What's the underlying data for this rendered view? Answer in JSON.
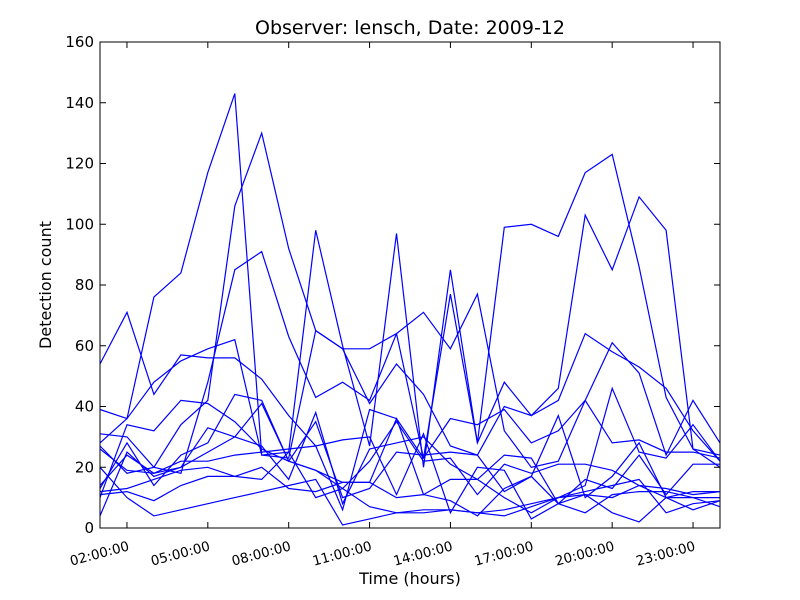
{
  "chart_data": {
    "type": "line",
    "title": "Observer: lensch, Date: 2009-12",
    "xlabel": "Time (hours)",
    "ylabel": "Detection count",
    "ylim": [
      0,
      160
    ],
    "xlim": [
      0,
      23
    ],
    "yticks": [
      0,
      20,
      40,
      60,
      80,
      100,
      120,
      140,
      160
    ],
    "xticks": [
      {
        "x": 1,
        "label": "02:00:00"
      },
      {
        "x": 4,
        "label": "05:00:00"
      },
      {
        "x": 7,
        "label": "08:00:00"
      },
      {
        "x": 10,
        "label": "11:00:00"
      },
      {
        "x": 13,
        "label": "14:00:00"
      },
      {
        "x": 16,
        "label": "17:00:00"
      },
      {
        "x": 19,
        "label": "20:00:00"
      },
      {
        "x": 22,
        "label": "23:00:00"
      }
    ],
    "grid": false,
    "line_color": "#0000ff",
    "series": [
      {
        "points": [
          [
            0,
            54
          ],
          [
            1,
            71
          ],
          [
            2,
            44
          ],
          [
            3,
            57
          ],
          [
            4,
            56
          ],
          [
            5,
            56
          ],
          [
            6,
            49
          ],
          [
            7,
            37
          ],
          [
            8,
            27
          ],
          [
            9,
            6
          ],
          [
            10,
            39
          ],
          [
            11,
            36
          ],
          [
            12,
            23
          ],
          [
            13,
            36
          ],
          [
            14,
            34
          ],
          [
            15,
            39
          ],
          [
            16,
            28
          ],
          [
            17,
            32
          ],
          [
            18,
            42
          ],
          [
            19,
            28
          ],
          [
            20,
            29
          ],
          [
            21,
            25
          ],
          [
            22,
            25
          ],
          [
            23,
            23
          ]
        ]
      },
      {
        "points": [
          [
            0,
            28
          ],
          [
            1,
            36
          ],
          [
            2,
            76
          ],
          [
            3,
            84
          ],
          [
            4,
            117
          ],
          [
            5,
            143
          ],
          [
            6,
            24
          ],
          [
            7,
            25
          ],
          [
            8,
            98
          ],
          [
            9,
            60
          ],
          [
            10,
            27
          ],
          [
            11,
            97
          ],
          [
            12,
            20
          ],
          [
            13,
            85
          ],
          [
            14,
            28
          ],
          [
            15,
            48
          ],
          [
            16,
            37
          ],
          [
            17,
            46
          ],
          [
            18,
            103
          ],
          [
            19,
            85
          ],
          [
            20,
            109
          ],
          [
            21,
            98
          ],
          [
            22,
            26
          ],
          [
            23,
            24
          ]
        ]
      },
      {
        "points": [
          [
            0,
            39
          ],
          [
            1,
            36
          ],
          [
            2,
            48
          ],
          [
            3,
            55
          ],
          [
            4,
            59
          ],
          [
            5,
            62
          ],
          [
            6,
            24
          ],
          [
            7,
            23
          ],
          [
            8,
            65
          ],
          [
            9,
            59
          ],
          [
            10,
            59
          ],
          [
            11,
            64
          ],
          [
            12,
            23
          ],
          [
            13,
            77
          ],
          [
            14,
            28
          ],
          [
            15,
            99
          ],
          [
            16,
            100
          ],
          [
            17,
            96
          ],
          [
            18,
            117
          ],
          [
            19,
            123
          ],
          [
            20,
            86
          ],
          [
            21,
            43
          ],
          [
            22,
            26
          ],
          [
            23,
            20
          ]
        ]
      },
      {
        "points": [
          [
            0,
            27
          ],
          [
            1,
            18
          ],
          [
            2,
            20
          ],
          [
            3,
            34
          ],
          [
            4,
            42
          ],
          [
            5,
            106
          ],
          [
            6,
            130
          ],
          [
            7,
            92
          ],
          [
            8,
            65
          ],
          [
            9,
            59
          ],
          [
            10,
            41
          ],
          [
            11,
            54
          ],
          [
            12,
            44
          ],
          [
            13,
            27
          ],
          [
            14,
            24
          ],
          [
            15,
            40
          ],
          [
            16,
            37
          ],
          [
            17,
            42
          ],
          [
            18,
            64
          ],
          [
            19,
            58
          ],
          [
            20,
            53
          ],
          [
            21,
            46
          ],
          [
            22,
            32
          ],
          [
            23,
            22
          ]
        ]
      },
      {
        "points": [
          [
            0,
            31
          ],
          [
            1,
            30
          ],
          [
            2,
            20
          ],
          [
            3,
            18
          ],
          [
            4,
            48
          ],
          [
            5,
            85
          ],
          [
            6,
            91
          ],
          [
            7,
            63
          ],
          [
            8,
            43
          ],
          [
            9,
            48
          ],
          [
            10,
            42
          ],
          [
            11,
            64
          ],
          [
            12,
            71
          ],
          [
            13,
            59
          ],
          [
            14,
            77
          ],
          [
            15,
            32
          ],
          [
            16,
            20
          ],
          [
            17,
            22
          ],
          [
            18,
            42
          ],
          [
            19,
            61
          ],
          [
            20,
            51
          ],
          [
            21,
            24
          ],
          [
            22,
            42
          ],
          [
            23,
            28
          ]
        ]
      },
      {
        "points": [
          [
            0,
            10
          ],
          [
            1,
            34
          ],
          [
            2,
            32
          ],
          [
            3,
            42
          ],
          [
            4,
            41
          ],
          [
            5,
            35
          ],
          [
            6,
            26
          ],
          [
            7,
            22
          ],
          [
            8,
            35
          ],
          [
            9,
            10
          ],
          [
            10,
            13
          ],
          [
            11,
            25
          ],
          [
            12,
            24
          ],
          [
            13,
            25
          ],
          [
            14,
            24
          ],
          [
            15,
            12
          ],
          [
            16,
            17
          ],
          [
            17,
            37
          ],
          [
            18,
            10
          ],
          [
            19,
            17
          ],
          [
            20,
            28
          ],
          [
            21,
            10
          ],
          [
            22,
            10
          ],
          [
            23,
            10
          ]
        ]
      },
      {
        "points": [
          [
            0,
            13
          ],
          [
            1,
            28
          ],
          [
            2,
            14
          ],
          [
            3,
            24
          ],
          [
            4,
            28
          ],
          [
            5,
            44
          ],
          [
            6,
            42
          ],
          [
            7,
            22
          ],
          [
            8,
            19
          ],
          [
            9,
            15
          ],
          [
            10,
            15
          ],
          [
            11,
            36
          ],
          [
            12,
            11
          ],
          [
            13,
            16
          ],
          [
            14,
            16
          ],
          [
            15,
            10
          ],
          [
            16,
            5
          ],
          [
            17,
            10
          ],
          [
            18,
            14
          ],
          [
            19,
            46
          ],
          [
            20,
            25
          ],
          [
            21,
            23
          ],
          [
            22,
            34
          ],
          [
            23,
            22
          ]
        ]
      },
      {
        "points": [
          [
            0,
            26
          ],
          [
            1,
            19
          ],
          [
            2,
            18
          ],
          [
            3,
            20
          ],
          [
            4,
            25
          ],
          [
            5,
            30
          ],
          [
            6,
            27
          ],
          [
            7,
            16
          ],
          [
            8,
            38
          ],
          [
            9,
            8
          ],
          [
            10,
            26
          ],
          [
            11,
            28
          ],
          [
            12,
            30
          ],
          [
            13,
            21
          ],
          [
            14,
            16
          ],
          [
            15,
            24
          ],
          [
            16,
            23
          ],
          [
            17,
            8
          ],
          [
            18,
            16
          ],
          [
            19,
            13
          ],
          [
            20,
            24
          ],
          [
            21,
            11
          ],
          [
            22,
            21
          ],
          [
            23,
            21
          ]
        ]
      },
      {
        "points": [
          [
            0,
            4
          ],
          [
            1,
            25
          ],
          [
            2,
            17
          ],
          [
            3,
            20
          ],
          [
            4,
            33
          ],
          [
            5,
            30
          ],
          [
            6,
            41
          ],
          [
            7,
            22
          ],
          [
            8,
            19
          ],
          [
            9,
            13
          ],
          [
            10,
            22
          ],
          [
            11,
            35
          ],
          [
            12,
            22
          ],
          [
            13,
            23
          ],
          [
            14,
            11
          ],
          [
            15,
            21
          ],
          [
            16,
            18
          ],
          [
            17,
            21
          ],
          [
            18,
            21
          ],
          [
            19,
            19
          ],
          [
            20,
            14
          ],
          [
            21,
            10
          ],
          [
            22,
            6
          ],
          [
            23,
            9
          ]
        ]
      },
      {
        "points": [
          [
            0,
            14
          ],
          [
            1,
            24
          ],
          [
            2,
            18
          ],
          [
            3,
            22
          ],
          [
            4,
            22
          ],
          [
            5,
            24
          ],
          [
            6,
            25
          ],
          [
            7,
            26
          ],
          [
            8,
            27
          ],
          [
            9,
            29
          ],
          [
            10,
            30
          ],
          [
            11,
            11
          ],
          [
            12,
            31
          ],
          [
            13,
            5
          ],
          [
            14,
            20
          ],
          [
            15,
            19
          ],
          [
            16,
            3
          ],
          [
            17,
            8
          ],
          [
            18,
            11
          ],
          [
            19,
            5
          ],
          [
            20,
            2
          ],
          [
            21,
            10
          ],
          [
            22,
            12
          ],
          [
            23,
            12
          ]
        ]
      },
      {
        "points": [
          [
            0,
            20
          ],
          [
            1,
            10
          ],
          [
            2,
            4
          ],
          [
            3,
            6
          ],
          [
            4,
            8
          ],
          [
            5,
            10
          ],
          [
            6,
            12
          ],
          [
            7,
            14
          ],
          [
            8,
            16
          ],
          [
            9,
            1
          ],
          [
            10,
            3
          ],
          [
            11,
            5
          ],
          [
            12,
            5
          ],
          [
            13,
            6
          ],
          [
            14,
            5
          ],
          [
            15,
            6
          ],
          [
            16,
            8
          ],
          [
            17,
            10
          ],
          [
            18,
            12
          ],
          [
            19,
            14
          ],
          [
            20,
            16
          ],
          [
            21,
            5
          ],
          [
            22,
            8
          ],
          [
            23,
            9
          ]
        ]
      },
      {
        "points": [
          [
            0,
            11
          ],
          [
            1,
            12
          ],
          [
            2,
            9
          ],
          [
            3,
            14
          ],
          [
            4,
            17
          ],
          [
            5,
            17
          ],
          [
            6,
            20
          ],
          [
            7,
            13
          ],
          [
            8,
            12
          ],
          [
            9,
            15
          ],
          [
            10,
            15
          ],
          [
            11,
            10
          ],
          [
            12,
            11
          ],
          [
            13,
            9
          ],
          [
            14,
            4
          ],
          [
            15,
            13
          ],
          [
            16,
            17
          ],
          [
            17,
            8
          ],
          [
            18,
            5
          ],
          [
            19,
            11
          ],
          [
            20,
            12
          ],
          [
            21,
            12
          ],
          [
            22,
            10
          ],
          [
            23,
            7
          ]
        ]
      },
      {
        "points": [
          [
            0,
            12
          ],
          [
            1,
            13
          ],
          [
            2,
            16
          ],
          [
            3,
            19
          ],
          [
            4,
            20
          ],
          [
            5,
            17
          ],
          [
            6,
            16
          ],
          [
            7,
            25
          ],
          [
            8,
            10
          ],
          [
            9,
            13
          ],
          [
            10,
            7
          ],
          [
            11,
            5
          ],
          [
            12,
            6
          ],
          [
            13,
            6
          ],
          [
            14,
            5
          ],
          [
            15,
            4
          ],
          [
            16,
            7
          ],
          [
            17,
            10
          ],
          [
            18,
            11
          ],
          [
            19,
            10
          ],
          [
            20,
            14
          ],
          [
            21,
            13
          ],
          [
            22,
            11
          ],
          [
            23,
            12
          ]
        ]
      }
    ]
  }
}
